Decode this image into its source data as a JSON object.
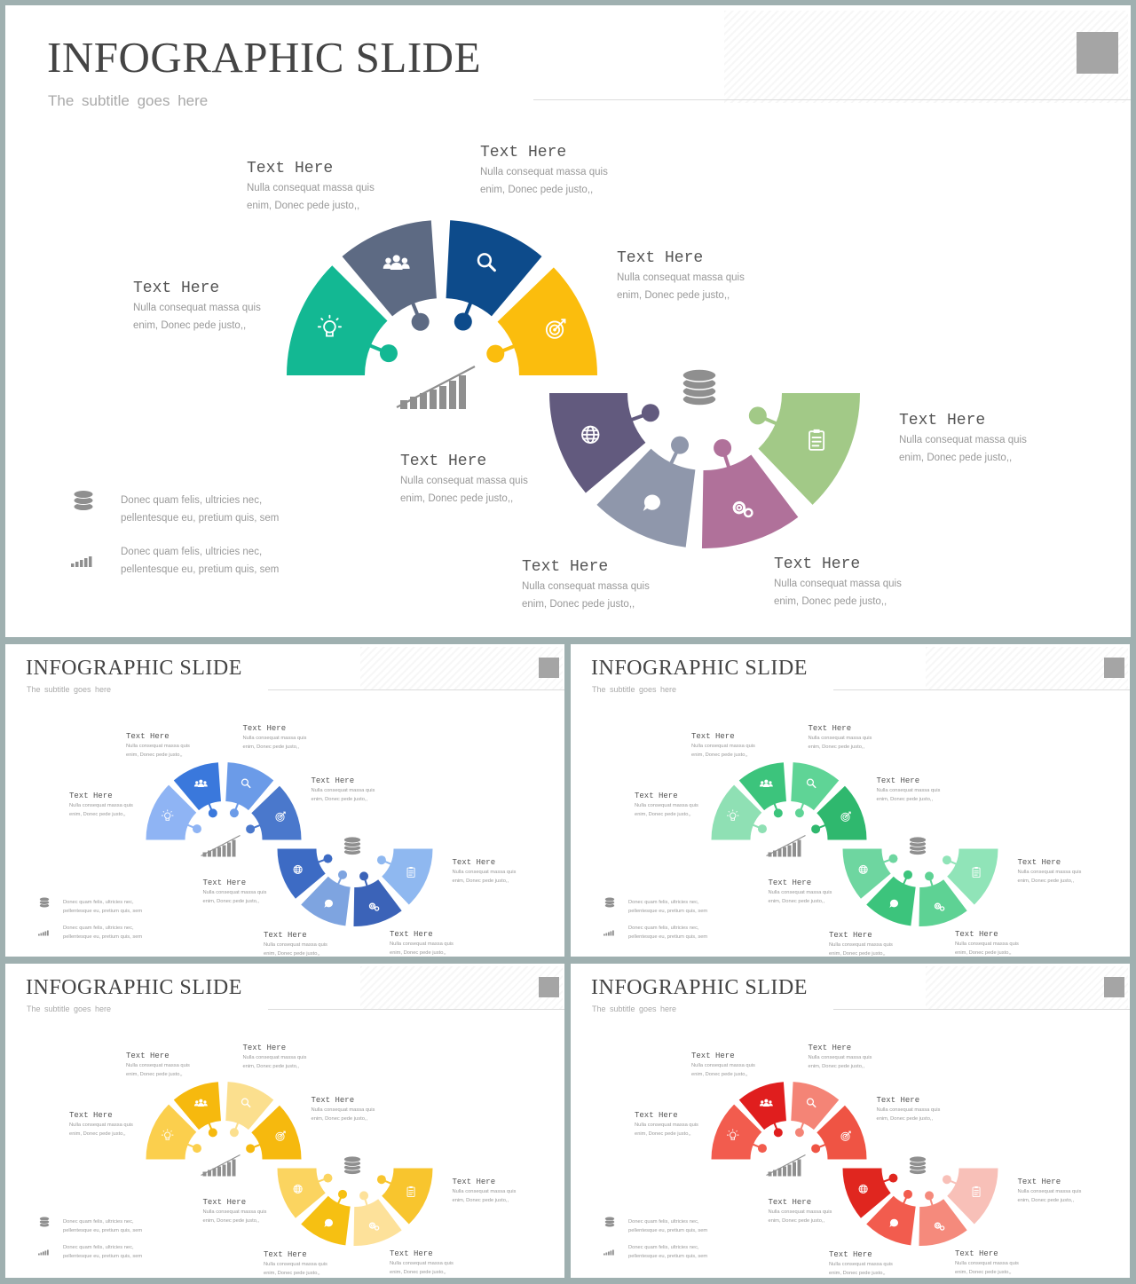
{
  "slide": {
    "title": "INFOGRAPHIC SLIDE",
    "subtitle": "The  subtitle  goes  here"
  },
  "blocks": [
    {
      "heading": "Text Here",
      "line1": "Nulla consequat massa quis",
      "line2": "enim, Donec pede justo,,"
    },
    {
      "heading": "Text Here",
      "line1": "Nulla consequat massa quis",
      "line2": "enim, Donec pede justo,,"
    },
    {
      "heading": "Text Here",
      "line1": "Nulla consequat massa quis",
      "line2": "enim, Donec pede justo,,"
    },
    {
      "heading": "Text Here",
      "line1": "Nulla consequat massa quis",
      "line2": "enim, Donec pede justo,,"
    },
    {
      "heading": "Text Here",
      "line1": "Nulla consequat massa quis",
      "line2": "enim, Donec pede justo,,"
    },
    {
      "heading": "Text Here",
      "line1": "Nulla consequat massa quis",
      "line2": "enim, Donec pede justo,,"
    },
    {
      "heading": "Text Here",
      "line1": "Nulla consequat massa quis",
      "line2": "enim, Donec pede justo,,"
    },
    {
      "heading": "Text Here",
      "line1": "Nulla consequat massa quis",
      "line2": "enim, Donec pede justo,,"
    }
  ],
  "notes": [
    {
      "icon": "database-icon",
      "line1": "Donec quam felis, ultricies nec,",
      "line2": "pellentesque eu, pretium quis, sem"
    },
    {
      "icon": "bar-chart-icon",
      "line1": "Donec quam felis, ultricies nec,",
      "line2": "pellentesque eu, pretium quis, sem"
    }
  ],
  "segments": [
    {
      "icon": "lightbulb-icon"
    },
    {
      "icon": "team-icon"
    },
    {
      "icon": "search-icon"
    },
    {
      "icon": "target-icon"
    },
    {
      "icon": "globe-icon"
    },
    {
      "icon": "chat-icon"
    },
    {
      "icon": "gears-icon"
    },
    {
      "icon": "clipboard-icon"
    }
  ],
  "center_icons": [
    "growth-chart-icon",
    "coins-icon"
  ],
  "themes": [
    {
      "name": "multicolor",
      "colors": [
        "#13b893",
        "#5d6a83",
        "#0d4b8b",
        "#fbbd0d",
        "#625a7e",
        "#8f97ab",
        "#b0719a",
        "#a2c987"
      ]
    },
    {
      "name": "blue",
      "colors": [
        "#8fb4f4",
        "#3a78dc",
        "#6b9be8",
        "#4a78cc",
        "#3d6bc4",
        "#7ea4e0",
        "#3b63b8",
        "#8fb8f0"
      ]
    },
    {
      "name": "green",
      "colors": [
        "#8fe0b4",
        "#3cc47c",
        "#5fd496",
        "#2fb86e",
        "#6ed6a0",
        "#3cc47c",
        "#5ed294",
        "#90e4b8"
      ]
    },
    {
      "name": "yellow",
      "colors": [
        "#fbcf4d",
        "#f6b90e",
        "#fbdf8e",
        "#f6b90e",
        "#fbd460",
        "#f6c012",
        "#fde19a",
        "#f8c52e"
      ]
    },
    {
      "name": "red",
      "colors": [
        "#f25c4e",
        "#e01e1e",
        "#f48476",
        "#ef5444",
        "#e0261f",
        "#f25c4e",
        "#f58a7c",
        "#f8c0b8"
      ]
    }
  ]
}
